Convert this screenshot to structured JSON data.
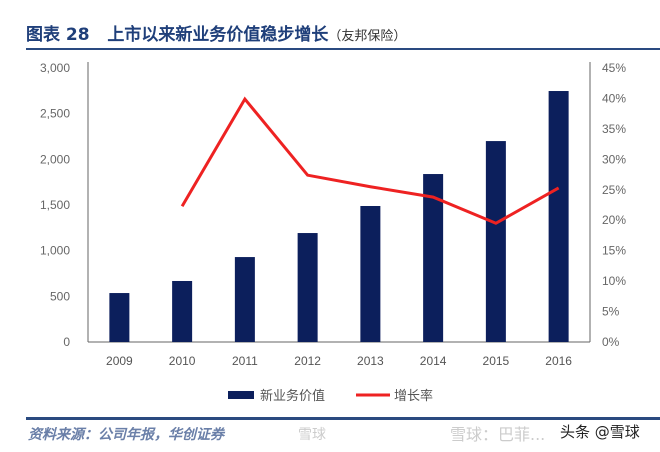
{
  "title": {
    "label": "图表 28",
    "text": "上市以来新业务价值稳步增长",
    "sub": "（友邦保险）"
  },
  "source": "资料来源：公司年报，华创证券",
  "watermarks": {
    "weibo": "雪球",
    "xueqiu": "雪球：巴菲...",
    "toutiao": "头条 @雪球"
  },
  "chart_data": {
    "type": "bar+line",
    "categories": [
      "2009",
      "2010",
      "2011",
      "2012",
      "2013",
      "2014",
      "2015",
      "2016"
    ],
    "series": [
      {
        "name": "新业务价值",
        "type": "bar",
        "axis": "left",
        "color": "#0c1f5c",
        "values": [
          536,
          668,
          930,
          1193,
          1489,
          1839,
          2200,
          2748
        ]
      },
      {
        "name": "增长率",
        "type": "line",
        "axis": "right",
        "color": "#ee2222",
        "values": [
          null,
          22.3,
          39.9,
          27.4,
          25.5,
          23.8,
          19.5,
          25.3
        ]
      }
    ],
    "left_axis": {
      "ylim": [
        0,
        3000
      ],
      "ticks": [
        "0",
        "500",
        "1,000",
        "1,500",
        "2,000",
        "2,500",
        "3,000"
      ]
    },
    "right_axis": {
      "ylim": [
        0,
        45
      ],
      "ticks": [
        "0%",
        "5%",
        "10%",
        "15%",
        "20%",
        "25%",
        "30%",
        "35%",
        "40%",
        "45%"
      ]
    },
    "grid": false,
    "legend": "bottom"
  }
}
